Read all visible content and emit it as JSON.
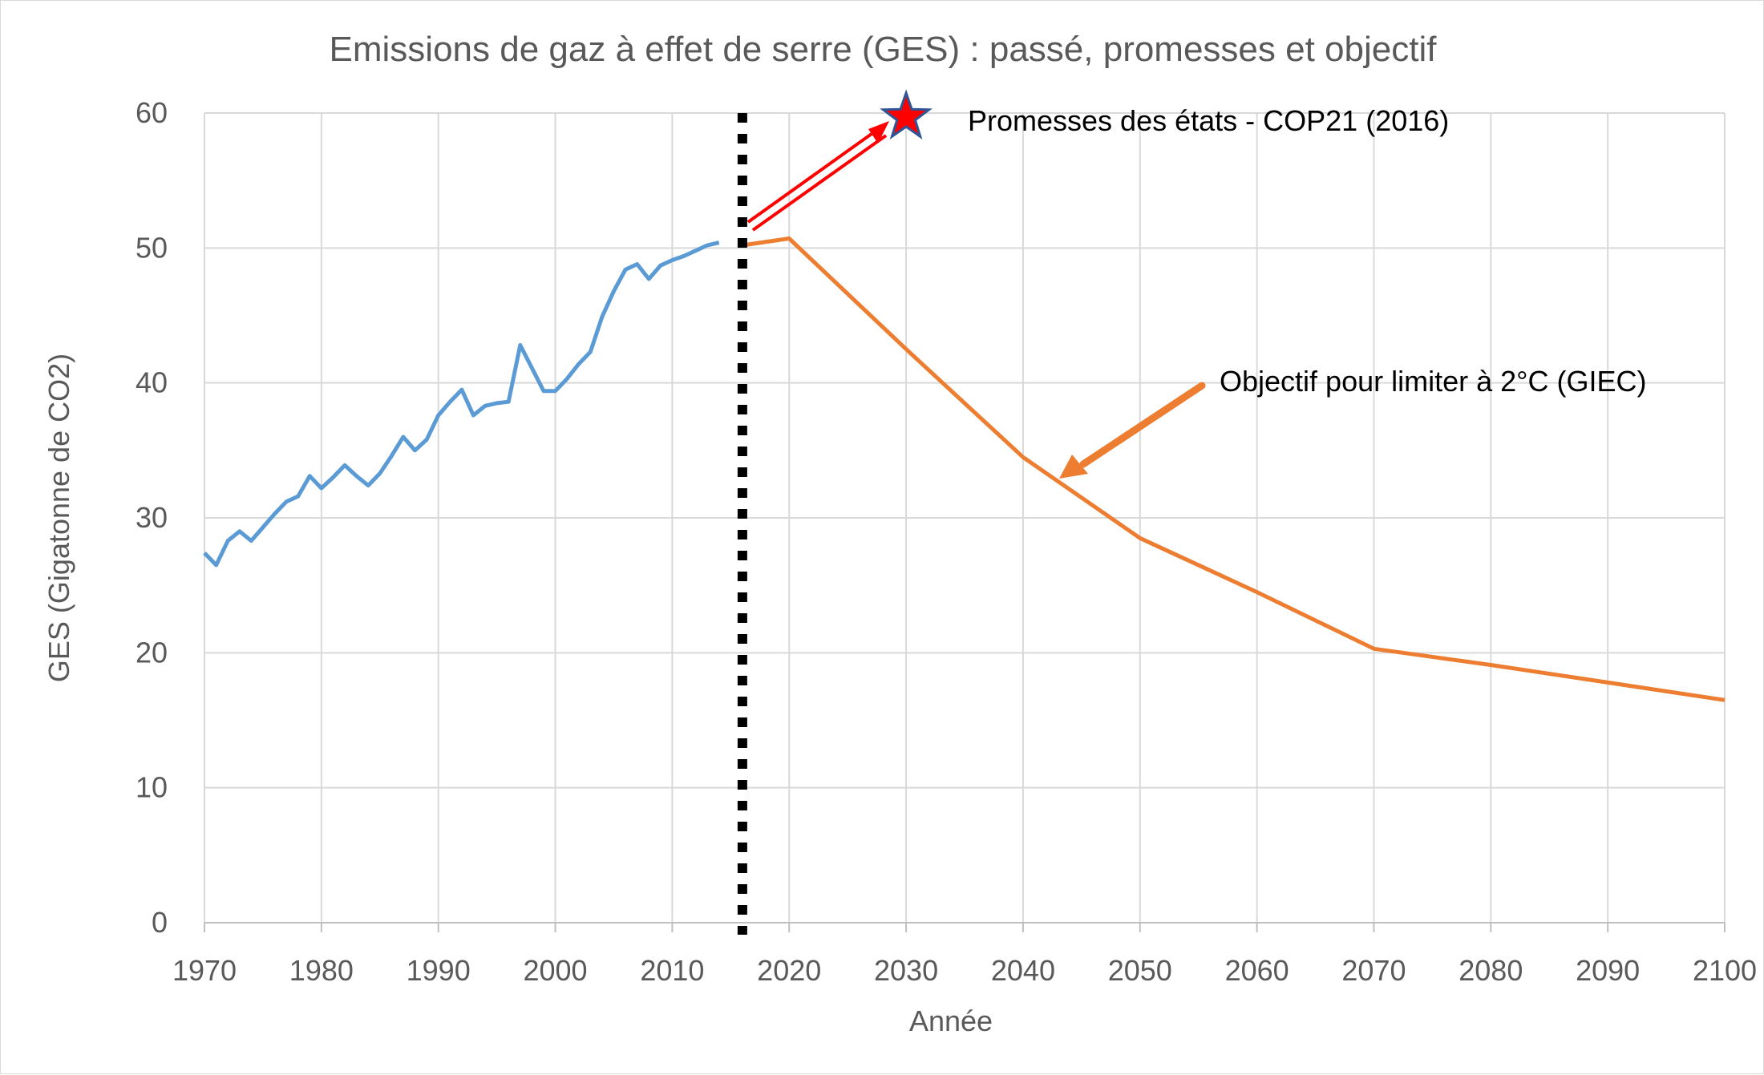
{
  "chart_data": {
    "type": "line",
    "title": "Emissions de gaz à effet de serre (GES) : passé, promesses et objectif",
    "xlabel": "Année",
    "ylabel": "GES (Gigatonne de CO2)",
    "xlim": [
      1970,
      2100
    ],
    "ylim": [
      0,
      60
    ],
    "x_ticks": [
      "1970",
      "1980",
      "1990",
      "2000",
      "2010",
      "2020",
      "2030",
      "2040",
      "2050",
      "2060",
      "2070",
      "2080",
      "2090",
      "2100"
    ],
    "y_ticks": [
      "0",
      "10",
      "20",
      "30",
      "40",
      "50",
      "60"
    ],
    "grid": true,
    "series": [
      {
        "color": "#5b9bd5",
        "x": [
          1970,
          1971,
          1972,
          1973,
          1974,
          1975,
          1976,
          1977,
          1978,
          1979,
          1980,
          1981,
          1982,
          1983,
          1984,
          1985,
          1986,
          1987,
          1988,
          1989,
          1990,
          1991,
          1992,
          1993,
          1994,
          1995,
          1996,
          1997,
          1998,
          1999,
          2000,
          2001,
          2002,
          2003,
          2004,
          2005,
          2006,
          2007,
          2008,
          2009,
          2010,
          2011,
          2012,
          2013,
          2014
        ],
        "values": [
          27.4,
          26.5,
          28.3,
          29.0,
          28.3,
          29.3,
          30.3,
          31.2,
          31.6,
          33.1,
          32.2,
          33.0,
          33.9,
          33.1,
          32.4,
          33.3,
          34.6,
          36.0,
          35.0,
          35.8,
          37.6,
          38.6,
          39.5,
          37.6,
          38.3,
          38.5,
          38.6,
          42.8,
          41.1,
          39.4,
          39.4,
          40.3,
          41.4,
          42.3,
          44.9,
          46.8,
          48.4,
          48.8,
          47.7,
          48.7,
          49.1,
          49.4,
          49.8,
          50.2,
          50.4
        ]
      },
      {
        "color": "#ed7d31",
        "x": [
          2016,
          2020,
          2030,
          2040,
          2050,
          2060,
          2070,
          2080,
          2090,
          2100
        ],
        "values": [
          50.2,
          50.7,
          42.5,
          34.5,
          28.5,
          24.5,
          20.3,
          19.1,
          17.8,
          16.5
        ]
      }
    ],
    "divider_x": 2016,
    "promise_point": {
      "x": 2030,
      "y": 59.7,
      "color": "#ff0000"
    },
    "annotations": [
      {
        "text": "Promesses des états - COP21 (2016)",
        "color": "#ff0000"
      },
      {
        "text": "Objectif pour limiter à 2°C (GIEC)",
        "color": "#ed7d31"
      }
    ]
  }
}
